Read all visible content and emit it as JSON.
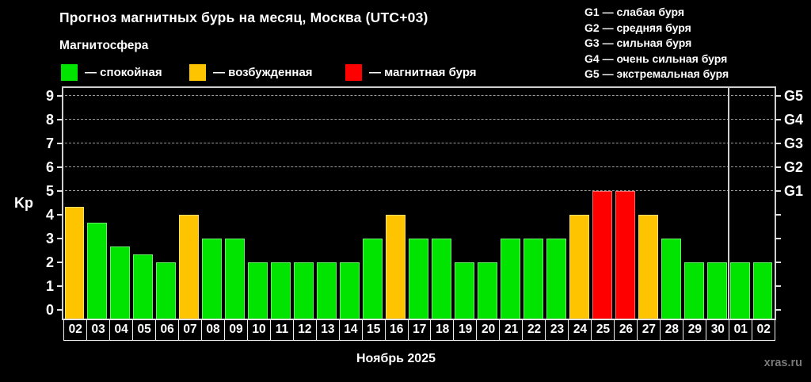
{
  "title": "Прогноз магнитных бурь на месяц, Москва (UTC+03)",
  "subtitle": "Магнитосфера",
  "legend": {
    "items": [
      {
        "key": "calm",
        "label": "— спокойная",
        "color": "#00e400"
      },
      {
        "key": "excited",
        "label": "— возбужденная",
        "color": "#ffc400"
      },
      {
        "key": "storm",
        "label": "— магнитная буря",
        "color": "#ff0000"
      }
    ]
  },
  "storm_scale_legend": [
    "G1 — слабая буря",
    "G2 — средняя буря",
    "G3 — сильная буря",
    "G4 — очень сильная буря",
    "G5 — экстремальная буря"
  ],
  "watermark": "xras.ru",
  "chart_data": {
    "type": "bar",
    "title": "Прогноз магнитных бурь на месяц, Москва (UTC+03)",
    "ylabel": "Kp",
    "xlabel": "Ноябрь 2025",
    "ylim": [
      0,
      9
    ],
    "yticks": [
      0,
      1,
      2,
      3,
      4,
      5,
      6,
      7,
      8,
      9
    ],
    "gridlines_at": [
      5,
      6,
      7,
      8,
      9
    ],
    "grid": "dashed-horizontal-at-storm-levels",
    "legend_position": "top-left",
    "right_axis": {
      "labels": [
        "G1",
        "G2",
        "G3",
        "G4",
        "G5"
      ],
      "values": [
        5,
        6,
        7,
        8,
        9
      ]
    },
    "categories": [
      "02",
      "03",
      "04",
      "05",
      "06",
      "07",
      "08",
      "09",
      "10",
      "11",
      "12",
      "13",
      "14",
      "15",
      "16",
      "17",
      "18",
      "19",
      "20",
      "21",
      "22",
      "23",
      "24",
      "25",
      "26",
      "27",
      "28",
      "29",
      "30",
      "01",
      "02"
    ],
    "values": [
      4.33,
      3.67,
      2.67,
      2.33,
      2,
      4,
      3,
      3,
      2,
      2,
      2,
      2,
      2,
      3,
      4,
      3,
      3,
      2,
      2,
      3,
      3,
      3,
      4,
      5,
      5,
      4,
      3,
      2,
      2,
      2,
      2
    ],
    "statuses": [
      "excited",
      "calm",
      "calm",
      "calm",
      "calm",
      "excited",
      "calm",
      "calm",
      "calm",
      "calm",
      "calm",
      "calm",
      "calm",
      "calm",
      "excited",
      "calm",
      "calm",
      "calm",
      "calm",
      "calm",
      "calm",
      "calm",
      "excited",
      "storm",
      "storm",
      "excited",
      "calm",
      "calm",
      "calm",
      "calm",
      "calm"
    ],
    "colors": {
      "calm": "#00e400",
      "excited": "#ffc400",
      "storm": "#ff0000"
    },
    "month_boundary_after_index": 28
  }
}
